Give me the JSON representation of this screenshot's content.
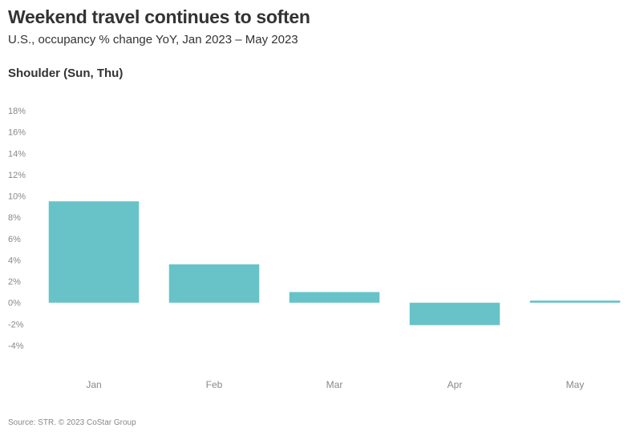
{
  "title": "Weekend travel continues to soften",
  "subtitle": "U.S., occupancy % change YoY, Jan 2023 – May 2023",
  "panel_label": "Shoulder (Sun, Thu)",
  "source": "Source: STR. © 2023 CoStar Group",
  "colors": {
    "bar": "#67c3c8"
  },
  "chart_data": {
    "type": "bar",
    "title": "Weekend travel continues to soften",
    "subtitle": "U.S., occupancy % change YoY, Jan 2023 – May 2023",
    "categories": [
      "Jan",
      "Feb",
      "Mar",
      "Apr",
      "May"
    ],
    "values": [
      9.5,
      3.6,
      1.0,
      -2.1,
      0.2
    ],
    "ylim": [
      -4,
      18
    ],
    "yticks": [
      18,
      16,
      14,
      12,
      10,
      8,
      6,
      4,
      2,
      0,
      -2,
      -4
    ],
    "ytick_labels": [
      "18%",
      "16%",
      "14%",
      "12%",
      "10%",
      "8%",
      "6%",
      "4%",
      "2%",
      "0%",
      "-2%",
      "-4%"
    ],
    "grid": false,
    "legend": "none"
  }
}
